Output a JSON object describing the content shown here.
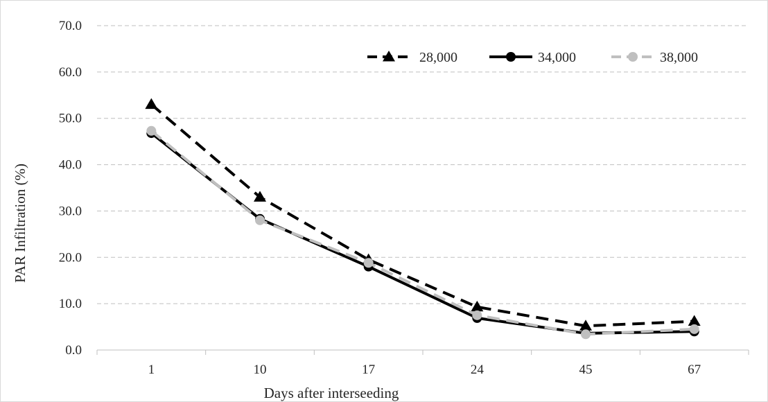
{
  "chart_data": {
    "type": "line",
    "title": "",
    "xlabel": "Days after interseeding",
    "ylabel": "PAR Infiltration (%)",
    "categories": [
      "1",
      "10",
      "17",
      "24",
      "45",
      "67"
    ],
    "ylim": [
      0,
      70
    ],
    "yticks": [
      "0.0",
      "10.0",
      "20.0",
      "30.0",
      "40.0",
      "50.0",
      "60.0",
      "70.0"
    ],
    "grid": true,
    "legend_position": "top-right",
    "series": [
      {
        "name": "28,000",
        "values": [
          53.0,
          33.0,
          19.5,
          9.3,
          5.2,
          6.2
        ],
        "color": "#000000",
        "line_style": "dashed",
        "marker": "triangle"
      },
      {
        "name": "34,000",
        "values": [
          46.8,
          28.3,
          18.0,
          6.9,
          3.6,
          4.0
        ],
        "color": "#000000",
        "line_style": "solid",
        "marker": "circle"
      },
      {
        "name": "38,000",
        "values": [
          47.3,
          28.0,
          18.8,
          7.5,
          3.4,
          4.5
        ],
        "color": "#bfbfbf",
        "line_style": "dashed",
        "marker": "circle"
      }
    ]
  }
}
